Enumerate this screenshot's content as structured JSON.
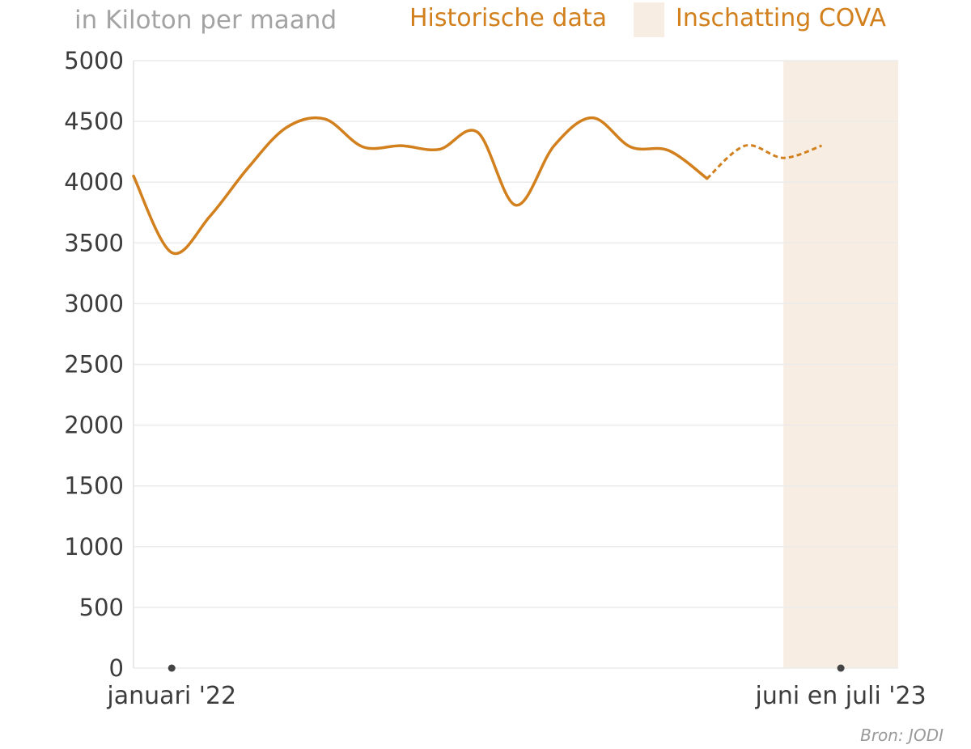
{
  "chart_data": {
    "type": "line",
    "unit_label": "in Kiloton per maand",
    "source": "Bron: JODI",
    "colors": {
      "series": "#d2801e",
      "forecast_band": "#f8ede3",
      "grid": "#ebebeb",
      "tick_text": "#3c3c3c",
      "unit_text": "#a3a3a3"
    },
    "ylim": [
      0,
      5000
    ],
    "yticks": [
      0,
      500,
      1000,
      1500,
      2000,
      2500,
      3000,
      3500,
      4000,
      4500,
      5000
    ],
    "xlim": [
      "2021-12",
      "2023-08"
    ],
    "xticks": [
      {
        "date": "2022-01",
        "label": "januari '22"
      },
      {
        "date": "2023-06.5",
        "label": "juni en juli '23"
      }
    ],
    "grid": true,
    "legend": {
      "position": "top-right",
      "items": [
        {
          "label": "Historische data",
          "style": "line"
        },
        {
          "label": "Inschatting COVA",
          "style": "band"
        }
      ]
    },
    "forecast_band": {
      "from": "2023-05",
      "to": "2023-08"
    },
    "series": [
      {
        "name": "Historische data",
        "style": "solid",
        "points": [
          {
            "x": "2021-12",
            "y": 4050
          },
          {
            "x": "2022-01",
            "y": 3420
          },
          {
            "x": "2022-02",
            "y": 3720
          },
          {
            "x": "2022-03",
            "y": 4120
          },
          {
            "x": "2022-04",
            "y": 4450
          },
          {
            "x": "2022-05",
            "y": 4520
          },
          {
            "x": "2022-06",
            "y": 4290
          },
          {
            "x": "2022-07",
            "y": 4300
          },
          {
            "x": "2022-08",
            "y": 4270
          },
          {
            "x": "2022-09",
            "y": 4410
          },
          {
            "x": "2022-10",
            "y": 3810
          },
          {
            "x": "2022-11",
            "y": 4300
          },
          {
            "x": "2022-12",
            "y": 4530
          },
          {
            "x": "2023-01",
            "y": 4290
          },
          {
            "x": "2023-02",
            "y": 4260
          },
          {
            "x": "2023-03",
            "y": 4030
          }
        ]
      },
      {
        "name": "Inschatting COVA",
        "style": "dashed",
        "points": [
          {
            "x": "2023-03",
            "y": 4030
          },
          {
            "x": "2023-04",
            "y": 4300
          },
          {
            "x": "2023-05",
            "y": 4200
          },
          {
            "x": "2023-06",
            "y": 4300
          }
        ]
      }
    ]
  }
}
